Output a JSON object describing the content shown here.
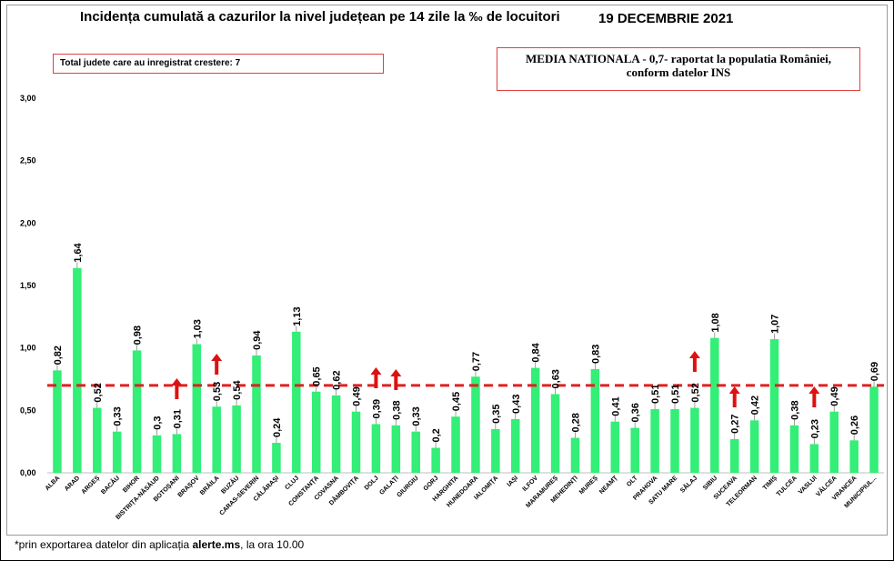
{
  "title": "Incidența cumulată a cazurilor la nivel județean pe 14 zile la ‰ de locuitori",
  "date": "19 DECEMBRIE 2021",
  "box_left": "Total judete care au inregistrat crestere: 7",
  "box_right": "MEDIA NATIONALA - 0,7-  raportat la populatia României, conform datelor INS",
  "footnote": {
    "prefix": "*prin exportarea datelor din aplicația ",
    "app": "alerte.ms",
    "suffix": ", la ora 10.00"
  },
  "colors": {
    "bar": "#33ee77",
    "average_line": "#e02020",
    "arrow": "#dd1111"
  },
  "chart_data": {
    "type": "bar",
    "categories": [
      "ALBA",
      "ARAD",
      "ARGEȘ",
      "BACĂU",
      "BIHOR",
      "BISTRIȚA-NĂSĂUD",
      "BOTOȘANI",
      "BRAȘOV",
      "BRĂILA",
      "BUZĂU",
      "CARAS-SEVERIN",
      "CĂLĂRAȘI",
      "CLUJ",
      "CONSTANȚA",
      "COVASNA",
      "DÂMBOVIȚA",
      "DOLJ",
      "GALAȚI",
      "GIURGIU",
      "GORJ",
      "HARGHITA",
      "HUNEDOARA",
      "IALOMIȚA",
      "IAȘI",
      "ILFOV",
      "MARAMUREȘ",
      "MEHEDINȚI",
      "MUREȘ",
      "NEAMȚ",
      "OLT",
      "PRAHOVA",
      "SATU MARE",
      "SĂLAJ",
      "SIBIU",
      "SUCEAVA",
      "TELEORMAN",
      "TIMIȘ",
      "TULCEA",
      "VASLUI",
      "VÂLCEA",
      "VRANCEA",
      "MUNICIPIUL..."
    ],
    "values": [
      0.82,
      1.64,
      0.52,
      0.33,
      0.98,
      0.3,
      0.31,
      1.03,
      0.53,
      0.54,
      0.94,
      0.24,
      1.13,
      0.65,
      0.62,
      0.49,
      0.39,
      0.38,
      0.33,
      0.2,
      0.45,
      0.77,
      0.35,
      0.43,
      0.84,
      0.63,
      0.28,
      0.83,
      0.41,
      0.36,
      0.51,
      0.51,
      0.52,
      1.08,
      0.27,
      0.42,
      1.07,
      0.38,
      0.23,
      0.49,
      0.26,
      0.69
    ],
    "value_labels": [
      "0,82",
      "1,64",
      "0,52",
      "0,33",
      "0,98",
      "0,3",
      "0,31",
      "1,03",
      "0,53",
      "0,54",
      "0,94",
      "0,24",
      "1,13",
      "0,65",
      "0,62",
      "0,49",
      "0,39",
      "0,38",
      "0,33",
      "0,2",
      "0,45",
      "0,77",
      "0,35",
      "0,43",
      "0,84",
      "0,63",
      "0,28",
      "0,83",
      "0,41",
      "0,36",
      "0,51",
      "0,51",
      "0,52",
      "1,08",
      "0,27",
      "0,42",
      "1,07",
      "0,38",
      "0,23",
      "0,49",
      "0,26",
      "0,69"
    ],
    "yticks": [
      0,
      0.5,
      1.0,
      1.5,
      2.0,
      2.5,
      3.0
    ],
    "ytick_labels": [
      "0,00",
      "0,50",
      "1,00",
      "1,50",
      "2,00",
      "2,50",
      "3,00"
    ],
    "ylim": [
      0,
      3.0
    ],
    "average_line": 0.7,
    "increase_markers": [
      "BOTOȘANI",
      "BRĂILA",
      "DOLJ",
      "GALAȚI",
      "SĂLAJ",
      "SUCEAVA",
      "VASLUI"
    ],
    "xlabel": "",
    "ylabel": ""
  }
}
